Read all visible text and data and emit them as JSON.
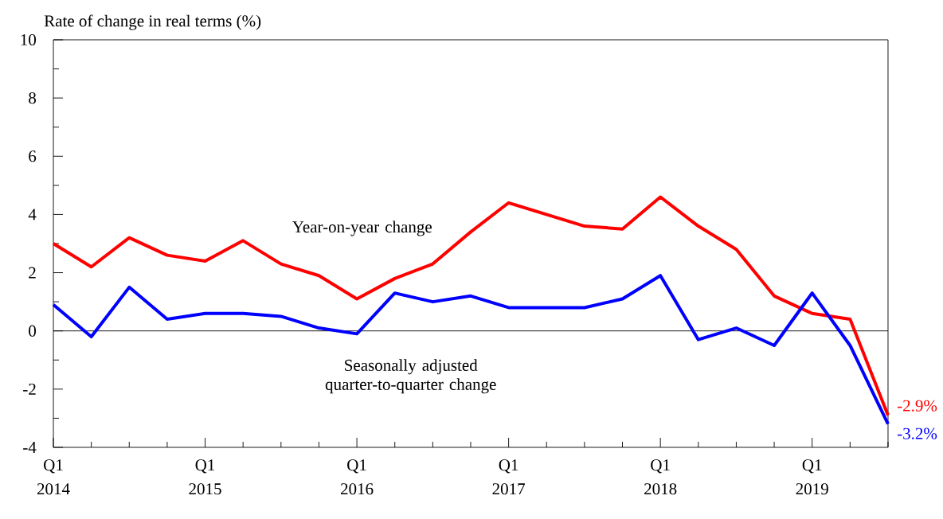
{
  "chart_data": {
    "type": "line",
    "ylabel": "Rate of change in real terms (%)",
    "categories": [
      "Q1 2014",
      null,
      null,
      null,
      "Q1 2015",
      null,
      null,
      null,
      "Q1 2016",
      null,
      null,
      null,
      "Q1 2017",
      null,
      null,
      null,
      "Q1 2018",
      null,
      null,
      null,
      "Q1 2019",
      null,
      null
    ],
    "series": [
      {
        "name": "Year-on-year change",
        "color": "#ff0000",
        "values": [
          3.0,
          2.2,
          3.2,
          2.6,
          2.4,
          3.1,
          2.3,
          1.9,
          1.1,
          1.8,
          2.3,
          3.4,
          4.4,
          4.0,
          3.6,
          3.5,
          4.6,
          3.6,
          2.8,
          1.2,
          0.6,
          0.4,
          -2.9
        ],
        "value_labels": [
          null,
          null,
          null,
          null,
          null,
          null,
          null,
          null,
          null,
          null,
          null,
          null,
          null,
          null,
          null,
          null,
          null,
          null,
          null,
          null,
          null,
          null,
          "-2.9%"
        ]
      },
      {
        "name": "Seasonally adjusted quarter-to-quarter change",
        "color": "#0000ff",
        "values": [
          0.9,
          -0.2,
          1.5,
          0.4,
          0.6,
          0.6,
          0.5,
          0.1,
          -0.1,
          1.3,
          1.0,
          1.2,
          0.8,
          0.8,
          0.8,
          1.1,
          1.9,
          -0.3,
          0.1,
          -0.5,
          1.3,
          -0.5,
          -3.2
        ],
        "value_labels": [
          null,
          null,
          null,
          null,
          null,
          null,
          null,
          null,
          null,
          null,
          null,
          null,
          null,
          null,
          null,
          null,
          null,
          null,
          null,
          null,
          null,
          null,
          "-3.2%"
        ]
      }
    ],
    "ylim": [
      -4,
      10
    ],
    "yticks": [
      -4,
      {
        "value": -3,
        "label": null
      },
      -2,
      {
        "value": -1,
        "label": null
      },
      0,
      {
        "value": 1,
        "label": null
      },
      2,
      {
        "value": 3,
        "label": null
      },
      4,
      {
        "value": 5,
        "label": null
      },
      6,
      {
        "value": 7,
        "label": null
      },
      8,
      {
        "value": 9,
        "label": null
      },
      10
    ],
    "ref_lines": [
      {
        "axis": "y",
        "value": 0,
        "color": "#000000"
      }
    ],
    "grid": false,
    "marker": "none",
    "line_style": "solid"
  }
}
